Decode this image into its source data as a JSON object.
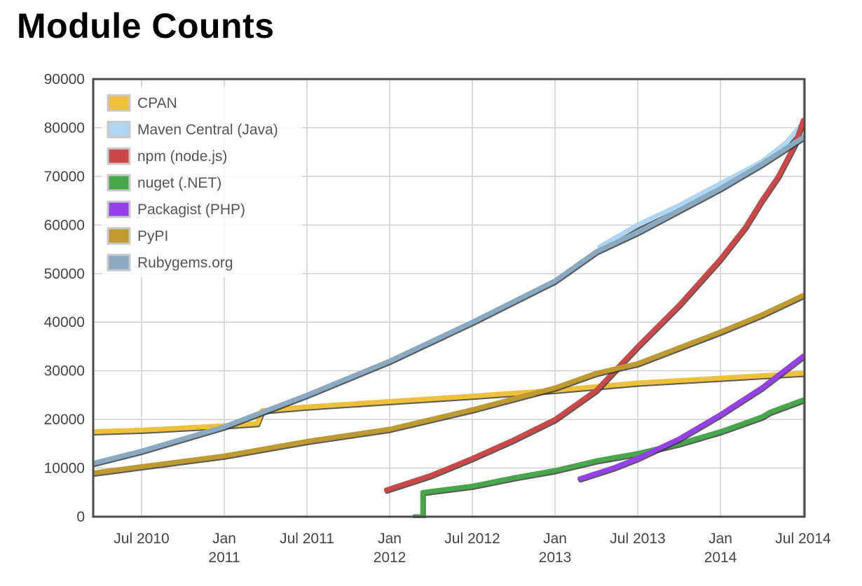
{
  "chart_data": {
    "type": "line",
    "title": "Module Counts",
    "xlabel": "",
    "ylabel": "",
    "ylim": [
      0,
      90000
    ],
    "xlim": [
      2010.21,
      2014.5
    ],
    "grid": true,
    "legend_position": "top-left",
    "y_ticks": [
      0,
      10000,
      20000,
      30000,
      40000,
      50000,
      60000,
      70000,
      80000,
      90000
    ],
    "x_ticks": [
      {
        "t": 2010.5,
        "lines": [
          "Jul 2010"
        ]
      },
      {
        "t": 2011.0,
        "lines": [
          "Jan",
          "2011"
        ]
      },
      {
        "t": 2011.5,
        "lines": [
          "Jul 2011"
        ]
      },
      {
        "t": 2012.0,
        "lines": [
          "Jan",
          "2012"
        ]
      },
      {
        "t": 2012.5,
        "lines": [
          "Jul 2012"
        ]
      },
      {
        "t": 2013.0,
        "lines": [
          "Jan",
          "2013"
        ]
      },
      {
        "t": 2013.5,
        "lines": [
          "Jul 2013"
        ]
      },
      {
        "t": 2014.0,
        "lines": [
          "Jan",
          "2014"
        ]
      },
      {
        "t": 2014.5,
        "lines": [
          "Jul 2014"
        ]
      }
    ],
    "series": [
      {
        "name": "CPAN",
        "color": "#efc03c",
        "points": [
          [
            2010.21,
            17500
          ],
          [
            2010.5,
            17800
          ],
          [
            2011.0,
            18700
          ],
          [
            2011.2,
            19200
          ],
          [
            2011.23,
            21800
          ],
          [
            2011.5,
            22600
          ],
          [
            2012.0,
            23700
          ],
          [
            2012.5,
            24800
          ],
          [
            2013.0,
            26000
          ],
          [
            2013.5,
            27500
          ],
          [
            2014.0,
            28500
          ],
          [
            2014.5,
            29500
          ]
        ]
      },
      {
        "name": "Maven Central (Java)",
        "color": "#aed6f3",
        "points": [
          [
            2013.27,
            55500
          ],
          [
            2013.5,
            60000
          ],
          [
            2013.75,
            64000
          ],
          [
            2014.0,
            68500
          ],
          [
            2014.25,
            73000
          ],
          [
            2014.4,
            77000
          ],
          [
            2014.5,
            81000
          ]
        ]
      },
      {
        "name": "npm (node.js)",
        "color": "#cc4848",
        "points": [
          [
            2011.98,
            5500
          ],
          [
            2012.25,
            8500
          ],
          [
            2012.5,
            12000
          ],
          [
            2012.75,
            15800
          ],
          [
            2013.0,
            20000
          ],
          [
            2013.25,
            26000
          ],
          [
            2013.5,
            35000
          ],
          [
            2013.75,
            43500
          ],
          [
            2014.0,
            53000
          ],
          [
            2014.15,
            59500
          ],
          [
            2014.25,
            65000
          ],
          [
            2014.35,
            70000
          ],
          [
            2014.45,
            76500
          ],
          [
            2014.5,
            81500
          ]
        ]
      },
      {
        "name": "nuget (.NET)",
        "color": "#46a84a",
        "points": [
          [
            2012.15,
            0
          ],
          [
            2012.2,
            0
          ],
          [
            2012.2,
            5000
          ],
          [
            2012.5,
            6300
          ],
          [
            2012.75,
            8000
          ],
          [
            2013.0,
            9500
          ],
          [
            2013.25,
            11500
          ],
          [
            2013.5,
            13000
          ],
          [
            2013.75,
            15000
          ],
          [
            2014.0,
            17500
          ],
          [
            2014.25,
            20500
          ],
          [
            2014.3,
            21500
          ],
          [
            2014.5,
            24000
          ]
        ]
      },
      {
        "name": "Packagist (PHP)",
        "color": "#9640ec",
        "points": [
          [
            2013.15,
            7800
          ],
          [
            2013.35,
            10000
          ],
          [
            2013.5,
            12000
          ],
          [
            2013.75,
            16000
          ],
          [
            2014.0,
            21000
          ],
          [
            2014.25,
            26500
          ],
          [
            2014.5,
            33000
          ]
        ]
      },
      {
        "name": "PyPI",
        "color": "#be9a30",
        "points": [
          [
            2010.21,
            9000
          ],
          [
            2010.5,
            10300
          ],
          [
            2011.0,
            12500
          ],
          [
            2011.5,
            15500
          ],
          [
            2012.0,
            18000
          ],
          [
            2012.5,
            22000
          ],
          [
            2013.0,
            26500
          ],
          [
            2013.25,
            29500
          ],
          [
            2013.5,
            31500
          ],
          [
            2014.0,
            38000
          ],
          [
            2014.25,
            41500
          ],
          [
            2014.5,
            45500
          ]
        ]
      },
      {
        "name": "Rubygems.org",
        "color": "#8aaac2",
        "points": [
          [
            2010.21,
            11000
          ],
          [
            2010.5,
            13500
          ],
          [
            2011.0,
            18500
          ],
          [
            2011.5,
            25000
          ],
          [
            2012.0,
            32000
          ],
          [
            2012.5,
            40000
          ],
          [
            2013.0,
            48500
          ],
          [
            2013.25,
            54500
          ],
          [
            2013.5,
            58500
          ],
          [
            2014.0,
            67500
          ],
          [
            2014.25,
            72500
          ],
          [
            2014.5,
            78000
          ]
        ]
      }
    ]
  }
}
